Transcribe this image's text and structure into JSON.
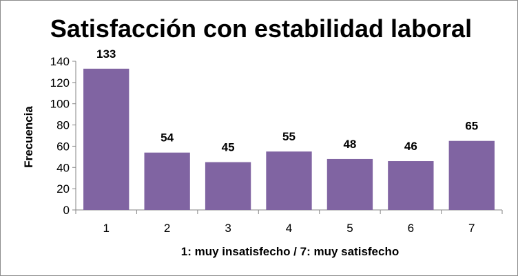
{
  "chart_data": {
    "type": "bar",
    "title": "Satisfacción con estabilidad laboral",
    "xlabel": "1: muy insatisfecho / 7: muy satisfecho",
    "ylabel": "Frecuencia",
    "categories": [
      "1",
      "2",
      "3",
      "4",
      "5",
      "6",
      "7"
    ],
    "values": [
      133,
      54,
      45,
      55,
      48,
      46,
      65
    ],
    "ylim": [
      0,
      140
    ],
    "yticks": [
      0,
      20,
      40,
      60,
      80,
      100,
      120,
      140
    ],
    "grid": false,
    "legend": "none",
    "bar_color": "#8064a2",
    "data_labels": true
  }
}
